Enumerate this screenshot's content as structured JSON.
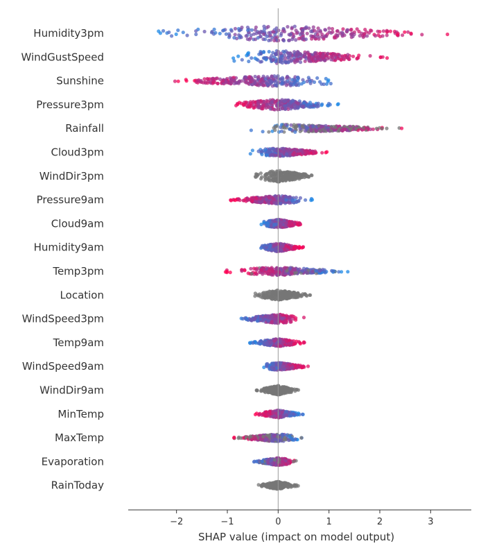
{
  "chart_data": {
    "type": "scatter",
    "subtype": "beeswarm",
    "title": "",
    "xlabel": "SHAP value (impact on model output)",
    "ylabel": "",
    "xlim": [
      -2.95,
      3.8
    ],
    "xticks": [
      -2,
      -1,
      0,
      1,
      2,
      3
    ],
    "zero_line": true,
    "grid": false,
    "legend": "none",
    "colors": {
      "high": "#ff0052",
      "low": "#1e88e5",
      "missing": "#777777",
      "zero_line": "#999999",
      "axis": "#333333"
    },
    "features": [
      {
        "name": "Humidity3pm",
        "min": -2.7,
        "max": 3.5,
        "width": 1.0,
        "lowSide": "neg",
        "grey": 0.0
      },
      {
        "name": "WindGustSpeed",
        "min": -1.0,
        "max": 2.15,
        "width": 0.85,
        "lowSide": "neg",
        "grey": 0.0
      },
      {
        "name": "Sunshine",
        "min": -2.3,
        "max": 1.4,
        "width": 0.7,
        "lowSide": "pos",
        "grey": 0.0
      },
      {
        "name": "Pressure3pm",
        "min": -1.1,
        "max": 1.2,
        "width": 0.7,
        "lowSide": "pos",
        "grey": 0.0
      },
      {
        "name": "Rainfall",
        "min": -0.55,
        "max": 2.55,
        "width": 0.55,
        "lowSide": "neg",
        "grey": 0.45
      },
      {
        "name": "Cloud3pm",
        "min": -0.55,
        "max": 0.97,
        "width": 0.55,
        "lowSide": "neg",
        "grey": 0.0
      },
      {
        "name": "WindDir3pm",
        "min": -0.5,
        "max": 0.8,
        "width": 0.75,
        "lowSide": "neg",
        "grey": 1.0
      },
      {
        "name": "Pressure9am",
        "min": -1.0,
        "max": 0.72,
        "width": 0.55,
        "lowSide": "pos",
        "grey": 0.0
      },
      {
        "name": "Cloud9am",
        "min": -0.4,
        "max": 0.53,
        "width": 0.55,
        "lowSide": "neg",
        "grey": 0.0
      },
      {
        "name": "Humidity9am",
        "min": -0.45,
        "max": 0.5,
        "width": 0.55,
        "lowSide": "neg",
        "grey": 0.0
      },
      {
        "name": "Temp3pm",
        "min": -1.05,
        "max": 1.4,
        "width": 0.55,
        "lowSide": "pos",
        "grey": 0.12
      },
      {
        "name": "Location",
        "min": -0.5,
        "max": 0.65,
        "width": 0.65,
        "lowSide": "neg",
        "grey": 1.0
      },
      {
        "name": "WindSpeed3pm",
        "min": -0.8,
        "max": 0.55,
        "width": 0.6,
        "lowSide": "neg",
        "grey": 0.0
      },
      {
        "name": "Temp9am",
        "min": -0.6,
        "max": 0.55,
        "width": 0.5,
        "lowSide": "neg",
        "grey": 0.0
      },
      {
        "name": "WindSpeed9am",
        "min": -0.35,
        "max": 0.6,
        "width": 0.5,
        "lowSide": "neg",
        "grey": 0.0
      },
      {
        "name": "WindDir9am",
        "min": -0.45,
        "max": 0.42,
        "width": 0.6,
        "lowSide": "neg",
        "grey": 1.0
      },
      {
        "name": "MinTemp",
        "min": -0.45,
        "max": 0.5,
        "width": 0.5,
        "lowSide": "pos",
        "grey": 0.0
      },
      {
        "name": "MaxTemp",
        "min": -0.9,
        "max": 0.5,
        "width": 0.5,
        "lowSide": "pos",
        "grey": 0.35
      },
      {
        "name": "Evaporation",
        "min": -0.5,
        "max": 0.45,
        "width": 0.5,
        "lowSide": "neg",
        "grey": 0.1
      },
      {
        "name": "RainToday",
        "min": -0.45,
        "max": 0.42,
        "width": 0.5,
        "lowSide": "neg",
        "grey": 1.0
      }
    ]
  }
}
